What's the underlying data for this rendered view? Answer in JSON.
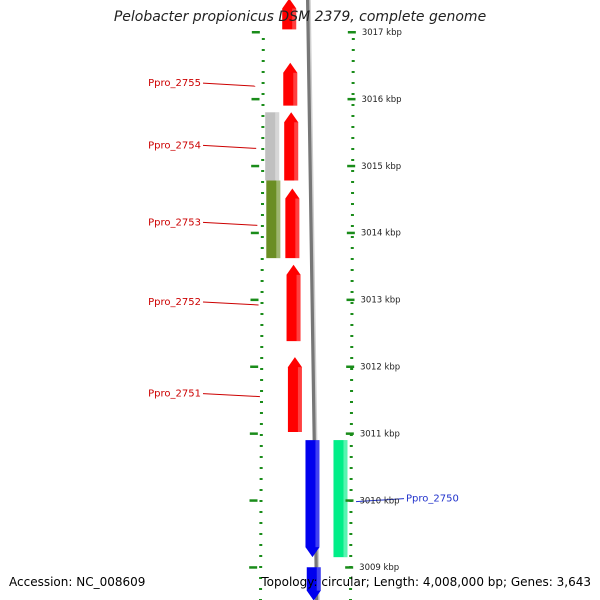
{
  "title": "Pelobacter propionicus DSM 2379, complete genome",
  "footer": {
    "accession": "Accession: NC_008609",
    "stats": "Topology: circular; Length: 4,008,000 bp; Genes: 3,643"
  },
  "ruler": {
    "ticks": [
      {
        "kbp": 3017,
        "label": "3017 kbp"
      },
      {
        "kbp": 3016,
        "label": "3016 kbp"
      },
      {
        "kbp": 3015,
        "label": "3015 kbp"
      },
      {
        "kbp": 3014,
        "label": "3014 kbp"
      },
      {
        "kbp": 3013,
        "label": "3013 kbp"
      },
      {
        "kbp": 3012,
        "label": "3012 kbp"
      },
      {
        "kbp": 3011,
        "label": "3011 kbp"
      },
      {
        "kbp": 3010,
        "label": "3010 kbp"
      },
      {
        "kbp": 3009,
        "label": "3009 kbp"
      }
    ]
  },
  "genes": [
    {
      "label": "",
      "start_kbp": 3017.04,
      "end_kbp": 3017.5,
      "strand": "-",
      "color": "#ff0000"
    },
    {
      "label": "Ppro_2755",
      "start_kbp": 3015.9,
      "end_kbp": 3016.54,
      "strand": "-",
      "color": "#ff0000"
    },
    {
      "label": "Ppro_2754",
      "start_kbp": 3014.78,
      "end_kbp": 3015.8,
      "strand": "-",
      "color": "#ff0000"
    },
    {
      "label": "Ppro_2753",
      "start_kbp": 3013.62,
      "end_kbp": 3014.66,
      "strand": "-",
      "color": "#ff0000"
    },
    {
      "label": "Ppro_2752",
      "start_kbp": 3012.38,
      "end_kbp": 3013.52,
      "strand": "-",
      "color": "#ff0000"
    },
    {
      "label": "Ppro_2751",
      "start_kbp": 3011.02,
      "end_kbp": 3012.14,
      "strand": "-",
      "color": "#ff0000"
    },
    {
      "label": "Ppro_2750",
      "start_kbp": 3009.15,
      "end_kbp": 3010.9,
      "strand": "+",
      "color": "#0000ee"
    },
    {
      "label": "",
      "start_kbp": 3008.5,
      "end_kbp": 3009.0,
      "strand": "+",
      "color": "#0000ee"
    }
  ],
  "features": [
    {
      "start_kbp": 3014.78,
      "end_kbp": 3015.8,
      "color": "#c0c0c0"
    },
    {
      "start_kbp": 3013.62,
      "end_kbp": 3014.78,
      "color": "#6b8e23"
    },
    {
      "start_kbp": 3009.15,
      "end_kbp": 3010.9,
      "color": "#00ee88"
    }
  ]
}
